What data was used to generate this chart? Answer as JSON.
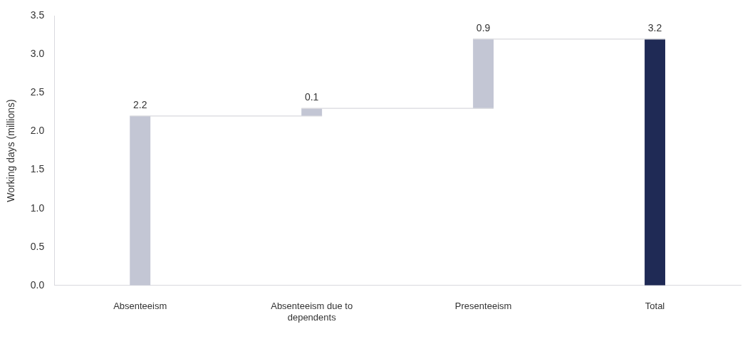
{
  "chart_data": {
    "type": "bar",
    "ylabel": "Working days (millions)",
    "categories": [
      "Absenteeism",
      "Absenteeism due to dependents",
      "Presenteeism",
      "Total"
    ],
    "values": [
      2.2,
      0.1,
      0.9,
      3.2
    ],
    "base": [
      0,
      2.2,
      2.3,
      0
    ],
    "colors": [
      "#c3c6d4",
      "#c3c6d4",
      "#c3c6d4",
      "#1f2a55"
    ],
    "ylim": [
      0,
      3.5
    ],
    "yticks": [
      {
        "value": 0,
        "label": "0.0"
      },
      0.5,
      {
        "value": 1,
        "label": "1.0"
      },
      1.5,
      {
        "value": 2,
        "label": "2.0"
      },
      2.5,
      {
        "value": 3,
        "label": "3.0"
      },
      3.5
    ],
    "grid": false,
    "legend": false,
    "data_labels": true
  }
}
